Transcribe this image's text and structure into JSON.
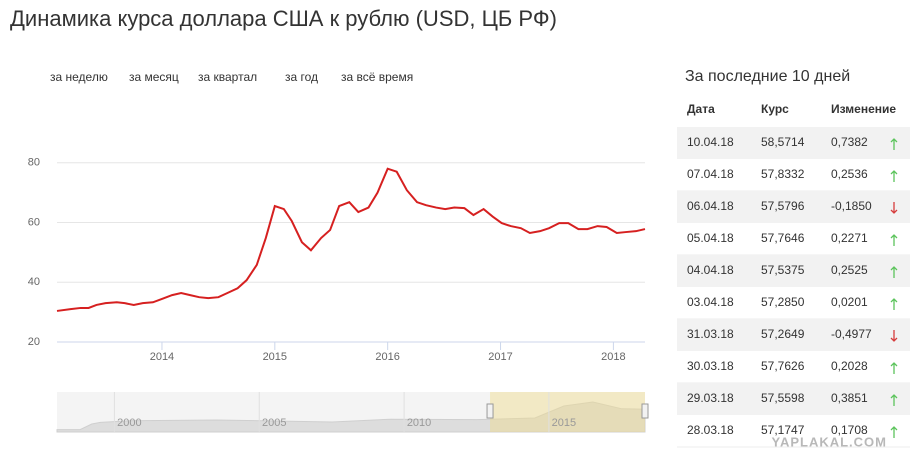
{
  "title": "Динамика курса доллара США к рублю (USD, ЦБ РФ)",
  "tabs": [
    "за неделю",
    "за месяц",
    "за квартал",
    "за год",
    "за всё время"
  ],
  "chart_data": [
    {
      "type": "line",
      "color": "#d62020",
      "x": [
        2013.07,
        2013.19,
        2013.28,
        2013.35,
        2013.42,
        2013.5,
        2013.6,
        2013.67,
        2013.75,
        2013.83,
        2013.92,
        2014.0,
        2014.09,
        2014.17,
        2014.25,
        2014.33,
        2014.41,
        2014.5,
        2014.58,
        2014.67,
        2014.75,
        2014.84,
        2014.92,
        2015.0,
        2015.08,
        2015.15,
        2015.24,
        2015.32,
        2015.41,
        2015.49,
        2015.57,
        2015.66,
        2015.74,
        2015.83,
        2015.91,
        2016.0,
        2016.08,
        2016.17,
        2016.26,
        2016.34,
        2016.43,
        2016.51,
        2016.59,
        2016.68,
        2016.76,
        2016.85,
        2016.93,
        2017.01,
        2017.09,
        2017.18,
        2017.26,
        2017.35,
        2017.43,
        2017.52,
        2017.6,
        2017.69,
        2017.77,
        2017.86,
        2017.94,
        2018.03,
        2018.11,
        2018.2,
        2018.28
      ],
      "values": [
        30.4,
        31,
        31.4,
        31.4,
        32.4,
        33,
        33.3,
        33,
        32.4,
        33,
        33.3,
        34.4,
        35.7,
        36.4,
        35.7,
        35,
        34.7,
        35,
        36.4,
        38,
        40.7,
        45.8,
        54.8,
        65.5,
        64.5,
        60.5,
        53.4,
        50.7,
        54.8,
        57.5,
        65.5,
        66.8,
        63.5,
        65,
        70,
        78,
        77,
        70.8,
        66.8,
        65.8,
        65,
        64.5,
        65,
        64.8,
        62.5,
        64.5,
        62,
        59.8,
        58.8,
        58.1,
        56.5,
        57.1,
        58.1,
        59.8,
        59.8,
        57.8,
        57.8,
        58.8,
        58.5,
        56.5,
        56.8,
        57.1,
        57.8
      ],
      "xlim": [
        2013.07,
        2018.28
      ],
      "ylim": [
        20,
        100
      ],
      "xticks": [
        2014,
        2015,
        2016,
        2017,
        2018
      ],
      "yticks": [
        20,
        40,
        60,
        80
      ],
      "grid": true
    },
    {
      "type": "area",
      "color": "#dddddd",
      "x": [
        1997.5,
        1998.3,
        1998.7,
        1999,
        2000,
        2003,
        2007,
        2009,
        2012,
        2014,
        2015,
        2016,
        2017,
        2017.8
      ],
      "values": [
        6,
        6,
        20,
        24,
        28,
        30,
        25,
        32,
        31,
        35,
        65,
        75,
        58,
        57
      ],
      "xlim": [
        1997.5,
        2017.8
      ],
      "ylim": [
        0,
        100
      ],
      "xticks": [
        2000,
        2005,
        2010,
        2015
      ],
      "selection": [
        2012.45,
        2017.8
      ]
    }
  ],
  "table": {
    "title": "За последние 10 дней",
    "columns": [
      "Дата",
      "Курс",
      "Изменение"
    ],
    "rows": [
      [
        "10.04.18",
        "58,5714",
        "0,7382"
      ],
      [
        "07.04.18",
        "57,8332",
        "0,2536"
      ],
      [
        "06.04.18",
        "57,5796",
        "-0,1850"
      ],
      [
        "05.04.18",
        "57,7646",
        "0,2271"
      ],
      [
        "04.04.18",
        "57,5375",
        "0,2525"
      ],
      [
        "03.04.18",
        "57,2850",
        "0,0201"
      ],
      [
        "31.03.18",
        "57,2649",
        "-0,4977"
      ],
      [
        "30.03.18",
        "57,7626",
        "0,2028"
      ],
      [
        "29.03.18",
        "57,5598",
        "0,3851"
      ],
      [
        "28.03.18",
        "57,1747",
        "0,1708"
      ]
    ]
  },
  "watermark": "YAPLAKAL.COM"
}
